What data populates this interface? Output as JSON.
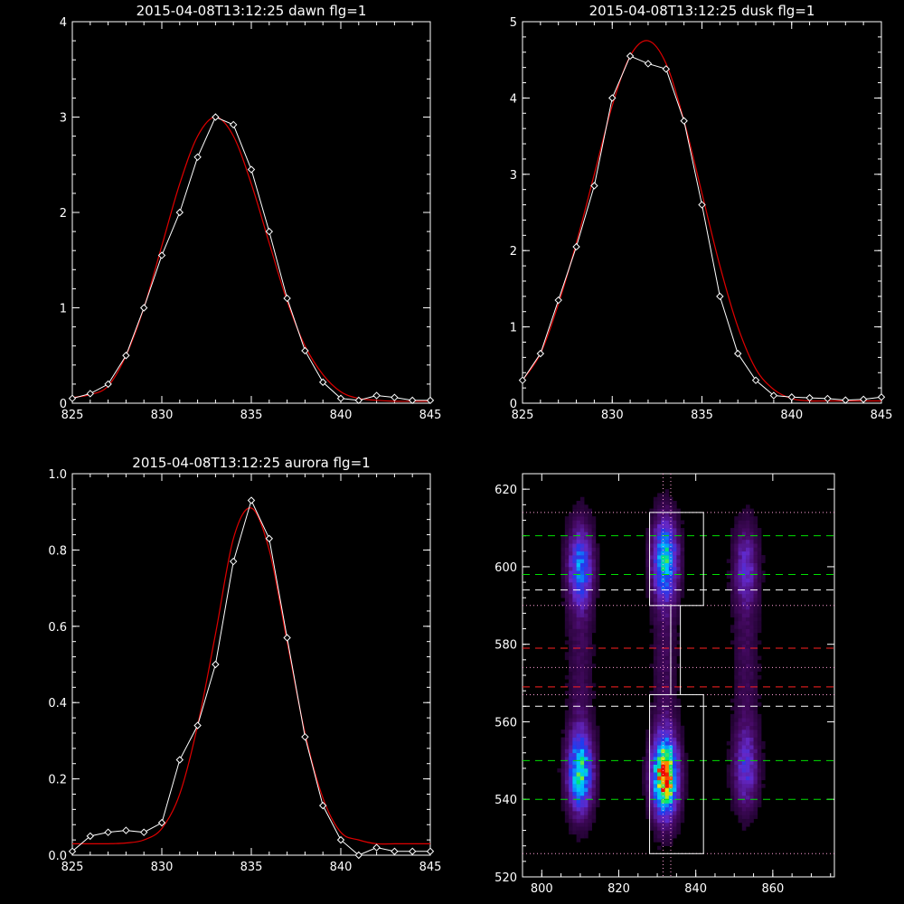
{
  "chart_data": [
    {
      "type": "line",
      "title": "2015-04-08T13:12:25 dawn flg=1",
      "xlim": [
        825,
        845
      ],
      "ylim": [
        0,
        4
      ],
      "xticks": [
        825,
        830,
        835,
        840,
        845
      ],
      "yticks": [
        0,
        1,
        2,
        3,
        4
      ],
      "series": [
        {
          "x": [
            825,
            826,
            827,
            828,
            829,
            830,
            831,
            832,
            833,
            834,
            835,
            836,
            837,
            838,
            839,
            840,
            841,
            842,
            843,
            844,
            845
          ],
          "values": [
            0.05,
            0.1,
            0.2,
            0.5,
            1.0,
            1.55,
            2.0,
            2.58,
            3.0,
            2.92,
            2.45,
            1.8,
            1.1,
            0.55,
            0.22,
            0.05,
            0.03,
            0.08,
            0.06,
            0.03,
            0.03
          ]
        },
        {
          "x": [
            825,
            826,
            827,
            828,
            829,
            830,
            831,
            832,
            833,
            834,
            835,
            836,
            837,
            838,
            839,
            840,
            841,
            842,
            843,
            844,
            845
          ],
          "values": [
            0.06,
            0.09,
            0.18,
            0.5,
            1.0,
            1.65,
            2.3,
            2.8,
            3.0,
            2.8,
            2.3,
            1.68,
            1.07,
            0.6,
            0.3,
            0.12,
            0.05,
            0.03,
            0.02,
            0.02,
            0.02
          ]
        }
      ]
    },
    {
      "type": "line",
      "title": "2015-04-08T13:12:25 dusk flg=1",
      "xlim": [
        825,
        845
      ],
      "ylim": [
        0,
        5
      ],
      "xticks": [
        825,
        830,
        835,
        840,
        845
      ],
      "yticks": [
        0,
        1,
        2,
        3,
        4,
        5
      ],
      "series": [
        {
          "x": [
            825,
            826,
            827,
            828,
            829,
            830,
            831,
            832,
            833,
            834,
            835,
            836,
            837,
            838,
            839,
            840,
            841,
            842,
            843,
            844,
            845
          ],
          "values": [
            0.3,
            0.65,
            1.35,
            2.05,
            2.85,
            4.0,
            4.55,
            4.45,
            4.38,
            3.7,
            2.6,
            1.4,
            0.65,
            0.3,
            0.1,
            0.08,
            0.07,
            0.06,
            0.04,
            0.05,
            0.08
          ]
        },
        {
          "x": [
            825,
            826,
            827,
            828,
            829,
            830,
            831,
            832,
            833,
            834,
            835,
            836,
            837,
            838,
            839,
            840,
            841,
            842,
            843,
            844,
            845
          ],
          "values": [
            0.3,
            0.65,
            1.3,
            2.1,
            3.0,
            3.9,
            4.55,
            4.75,
            4.45,
            3.7,
            2.75,
            1.8,
            1.0,
            0.45,
            0.18,
            0.06,
            0.03,
            0.03,
            0.03,
            0.03,
            0.03
          ]
        }
      ]
    },
    {
      "type": "line",
      "title": "2015-04-08T13:12:25 aurora flg=1",
      "xlim": [
        825,
        845
      ],
      "ylim": [
        0,
        1.0
      ],
      "xticks": [
        825,
        830,
        835,
        840,
        845
      ],
      "yticks": [
        0.0,
        0.2,
        0.4,
        0.6,
        0.8,
        1.0
      ],
      "ytick_labels": [
        "0.0",
        "0.2",
        "0.4",
        "0.6",
        "0.8",
        "1.0"
      ],
      "series": [
        {
          "x": [
            825,
            826,
            827,
            828,
            829,
            830,
            831,
            832,
            833,
            834,
            835,
            836,
            837,
            838,
            839,
            840,
            841,
            842,
            843,
            844,
            845
          ],
          "values": [
            0.01,
            0.05,
            0.06,
            0.065,
            0.06,
            0.085,
            0.25,
            0.34,
            0.5,
            0.77,
            0.93,
            0.83,
            0.57,
            0.31,
            0.13,
            0.04,
            0.0,
            0.02,
            0.01,
            0.01,
            0.01
          ]
        },
        {
          "x": [
            825,
            826,
            827,
            828,
            829,
            830,
            831,
            832,
            833,
            834,
            835,
            836,
            837,
            838,
            839,
            840,
            841,
            842,
            843,
            844,
            845
          ],
          "values": [
            0.03,
            0.03,
            0.03,
            0.032,
            0.04,
            0.07,
            0.16,
            0.34,
            0.58,
            0.83,
            0.91,
            0.8,
            0.56,
            0.32,
            0.15,
            0.06,
            0.04,
            0.03,
            0.03,
            0.03,
            0.03
          ]
        }
      ]
    },
    {
      "type": "heatmap",
      "xlim": [
        795,
        876
      ],
      "ylim": [
        520,
        624
      ],
      "xticks": [
        800,
        820,
        840,
        860
      ],
      "yticks": [
        520,
        540,
        560,
        580,
        600,
        620
      ],
      "columns": [
        {
          "x": 810,
          "blobs": [
            {
              "y": 547,
              "peak": 0.65
            },
            {
              "y": 600,
              "peak": 0.45
            }
          ]
        },
        {
          "x": 832,
          "blobs": [
            {
              "y": 546,
              "peak": 1.0
            },
            {
              "y": 602,
              "peak": 0.6
            }
          ]
        },
        {
          "x": 853,
          "blobs": [
            {
              "y": 548,
              "peak": 0.3
            },
            {
              "y": 600,
              "peak": 0.25
            }
          ]
        }
      ],
      "boxes": [
        {
          "x0": 828,
          "x1": 842,
          "y0": 526,
          "y1": 567
        },
        {
          "x0": 828,
          "x1": 842,
          "y0": 590,
          "y1": 614
        }
      ],
      "hlines": [
        {
          "y": 540,
          "color": "#00e000",
          "style": "dash"
        },
        {
          "y": 550,
          "color": "#00e000",
          "style": "dash"
        },
        {
          "y": 598,
          "color": "#00e000",
          "style": "dash"
        },
        {
          "y": 608,
          "color": "#00e000",
          "style": "dash"
        },
        {
          "y": 564,
          "color": "#ffffff",
          "style": "dash"
        },
        {
          "y": 594,
          "color": "#ffffff",
          "style": "dash"
        },
        {
          "y": 569,
          "color": "#ff2020",
          "style": "dash"
        },
        {
          "y": 579,
          "color": "#ff2020",
          "style": "dash"
        },
        {
          "y": 526,
          "color": "#ff9fd8",
          "style": "dot"
        },
        {
          "y": 567,
          "color": "#ff9fd8",
          "style": "dot"
        },
        {
          "y": 574,
          "color": "#ff9fd8",
          "style": "dot"
        },
        {
          "y": 590,
          "color": "#ff9fd8",
          "style": "dot"
        },
        {
          "y": 614,
          "color": "#ff9fd8",
          "style": "dot"
        }
      ],
      "vlines": [
        {
          "x": 831.5,
          "color": "#ff9fd8",
          "style": "dot"
        },
        {
          "x": 833.5,
          "color": "#ff9fd8",
          "style": "dot"
        }
      ]
    }
  ]
}
